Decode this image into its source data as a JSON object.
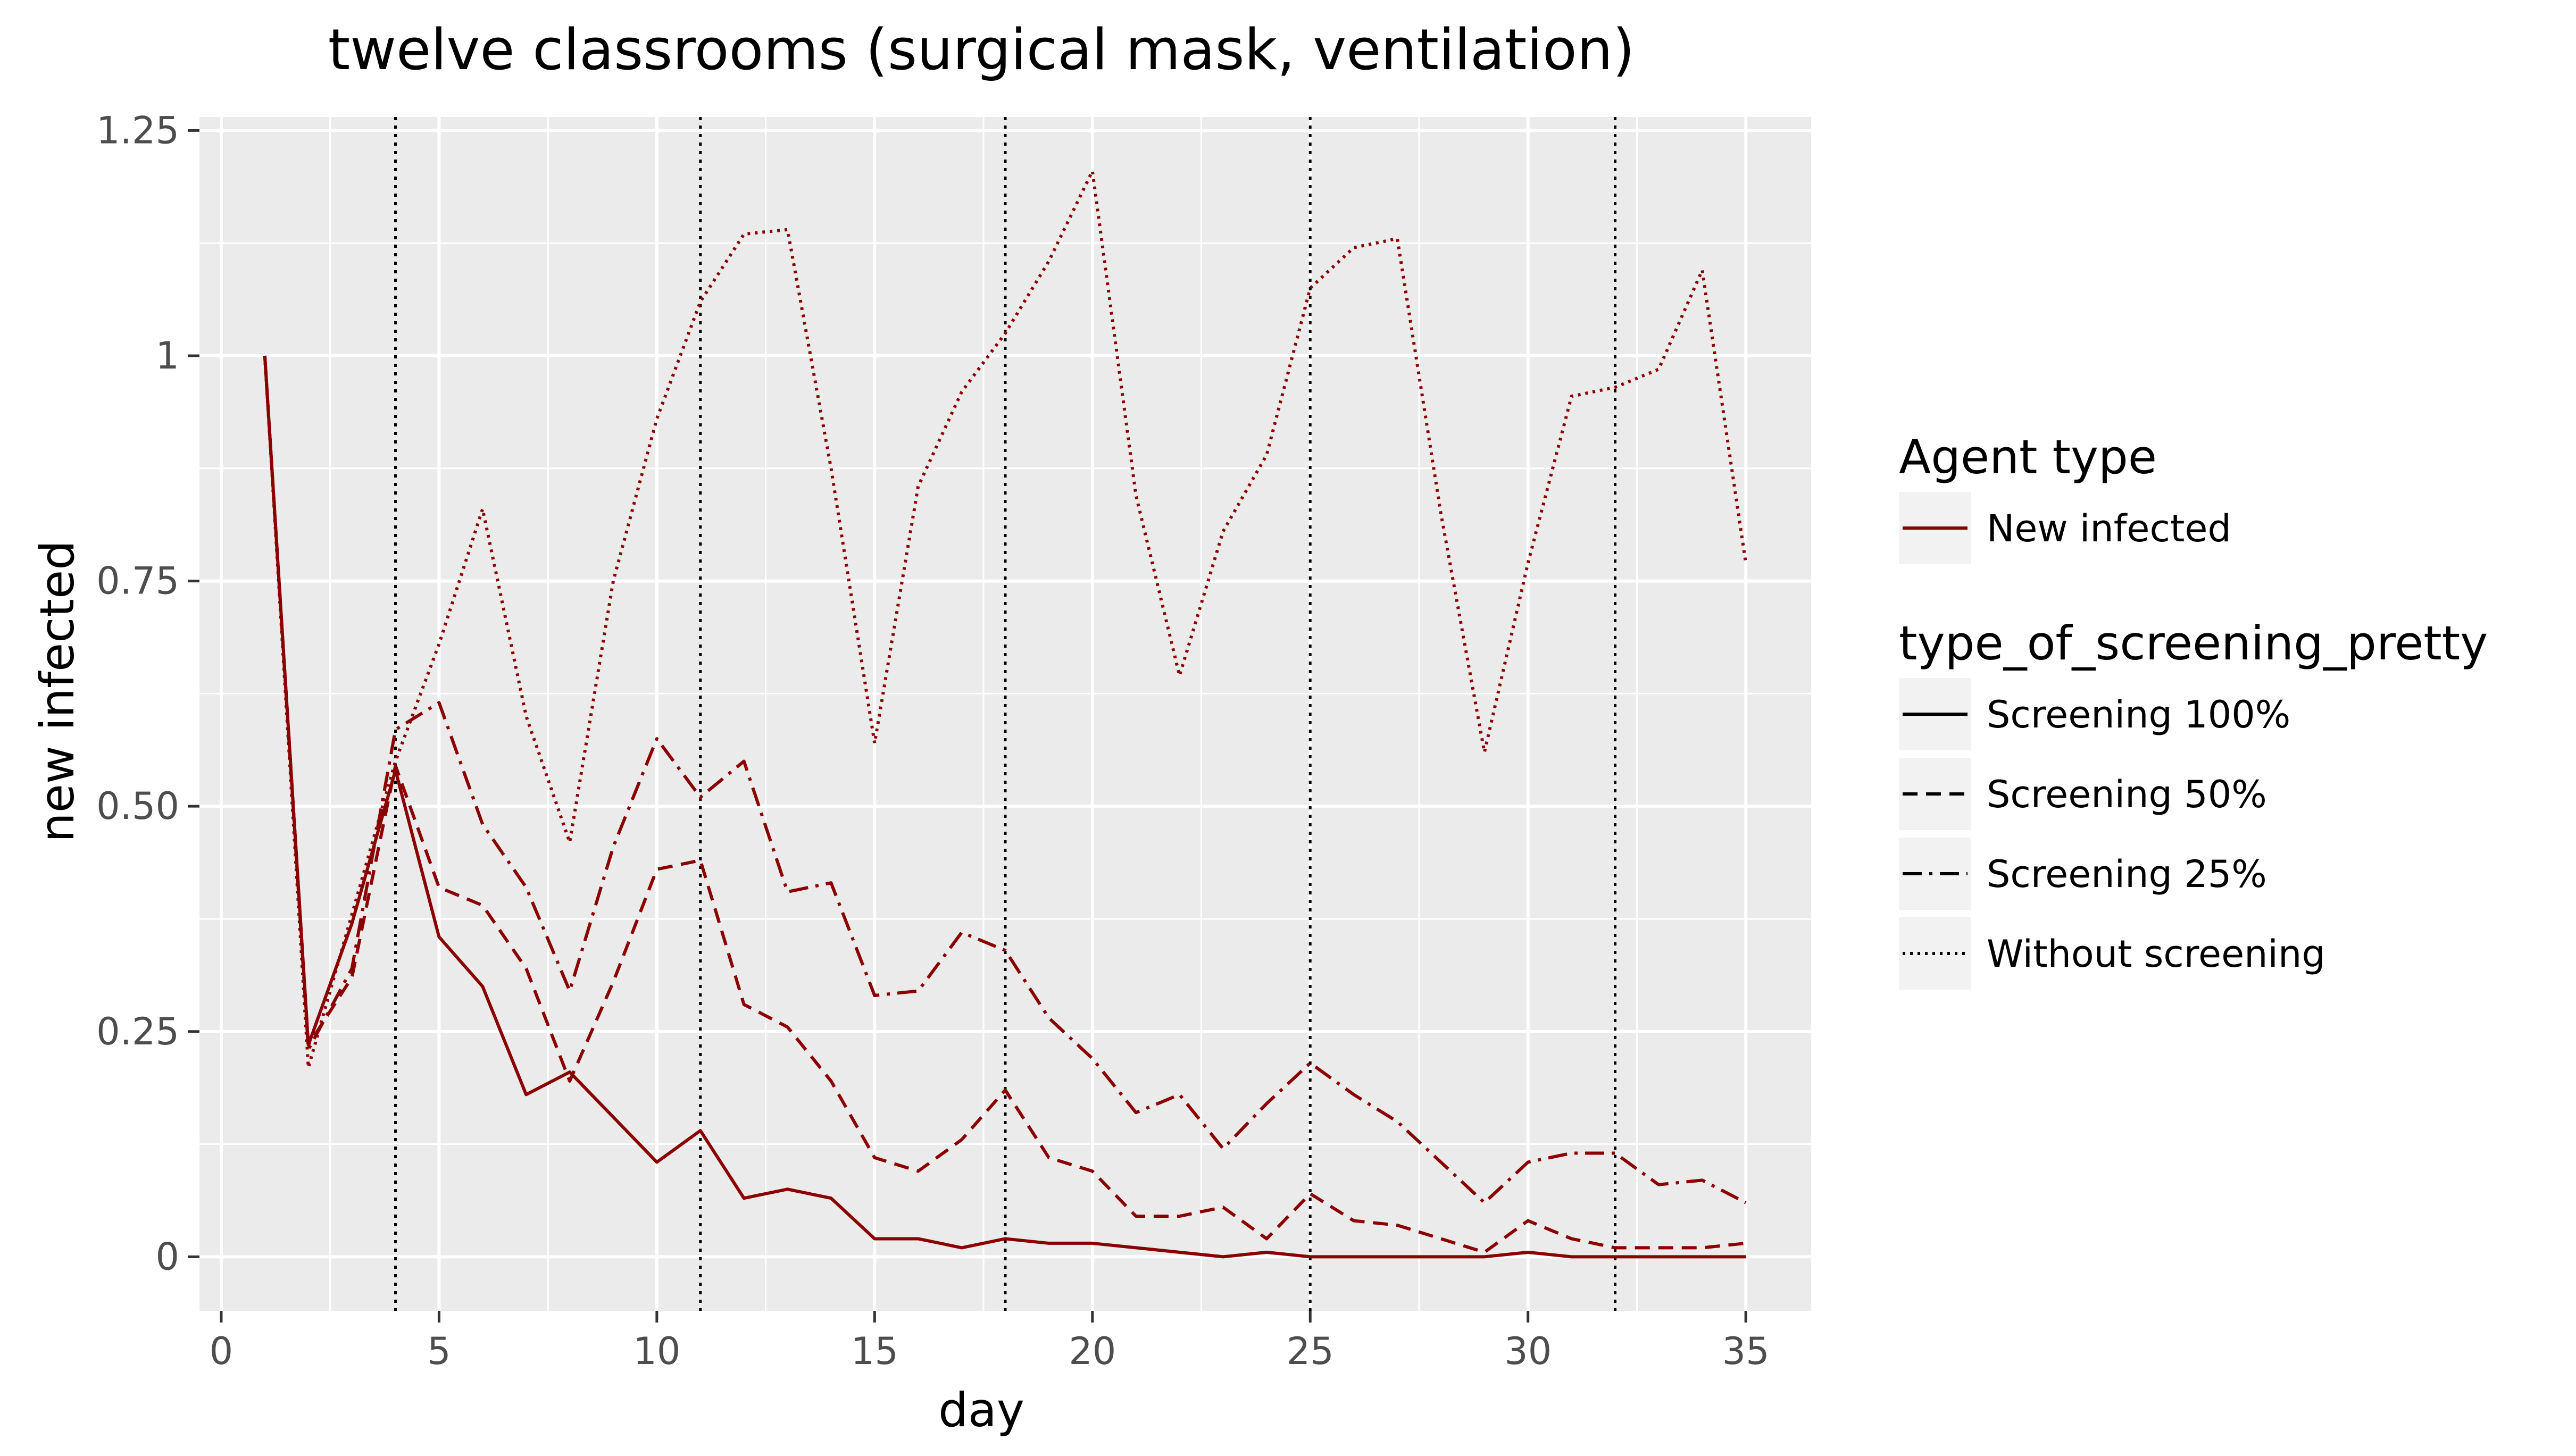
{
  "chart_data": {
    "type": "line",
    "title": "twelve classrooms (surgical mask, ventilation)",
    "xlabel": "day",
    "ylabel": "new infected",
    "xlim": [
      -0.5,
      36.5
    ],
    "ylim": [
      -0.06,
      1.265
    ],
    "x_ticks": [
      0,
      5,
      10,
      15,
      20,
      25,
      30,
      35
    ],
    "x_tick_labels": [
      "0",
      "5",
      "10",
      "15",
      "20",
      "25",
      "30",
      "35"
    ],
    "y_ticks": [
      0,
      0.25,
      0.5,
      0.75,
      1,
      1.25
    ],
    "y_tick_labels": [
      "0",
      "0.25",
      "0.50",
      "0.75",
      "1",
      "1.25"
    ],
    "vlines": [
      4,
      11,
      18,
      25,
      32
    ],
    "grid": true,
    "panel_background": "#ebebeb",
    "line_color": "#8b0000",
    "legend": {
      "placement": "right",
      "color_title": "Agent type",
      "color_entries": [
        {
          "label": "New infected",
          "color": "#8b0000"
        }
      ],
      "linetype_title": "type_of_screening_pretty",
      "linetype_entries": [
        {
          "label": "Screening 100%",
          "dash": "solid"
        },
        {
          "label": "Screening 50%",
          "dash": "dashed"
        },
        {
          "label": "Screening 25%",
          "dash": "dashdot"
        },
        {
          "label": "Without screening",
          "dash": "dotted"
        }
      ]
    },
    "x": [
      1,
      2,
      3,
      4,
      5,
      6,
      7,
      8,
      9,
      10,
      11,
      12,
      13,
      14,
      15,
      16,
      17,
      18,
      19,
      20,
      21,
      22,
      23,
      24,
      25,
      26,
      27,
      28,
      29,
      30,
      31,
      32,
      33,
      34,
      35
    ],
    "series": [
      {
        "name": "Screening 100%",
        "dash": "solid",
        "values": [
          1,
          0.235,
          0.37,
          0.54,
          0.355,
          0.3,
          0.18,
          0.205,
          0.155,
          0.105,
          0.14,
          0.065,
          0.075,
          0.065,
          0.02,
          0.02,
          0.01,
          0.02,
          0.015,
          0.015,
          0.01,
          0.005,
          0.0,
          0.005,
          0.0,
          0.0,
          0.0,
          0.0,
          0.0,
          0.005,
          0.0,
          0.0,
          0.0,
          0.0,
          0.0
        ]
      },
      {
        "name": "Screening 50%",
        "dash": "dashed",
        "values": [
          1,
          0.235,
          0.31,
          0.545,
          0.41,
          0.39,
          0.32,
          0.195,
          0.305,
          0.43,
          0.44,
          0.28,
          0.255,
          0.195,
          0.11,
          0.095,
          0.13,
          0.185,
          0.11,
          0.095,
          0.045,
          0.045,
          0.055,
          0.02,
          0.07,
          0.04,
          0.035,
          0.02,
          0.005,
          0.04,
          0.02,
          0.01,
          0.01,
          0.01,
          0.015
        ]
      },
      {
        "name": "Screening 25%",
        "dash": "dashdot",
        "values": [
          1,
          0.23,
          0.32,
          0.585,
          0.615,
          0.48,
          0.41,
          0.295,
          0.455,
          0.575,
          0.51,
          0.55,
          0.405,
          0.415,
          0.29,
          0.295,
          0.36,
          0.34,
          0.265,
          0.22,
          0.16,
          0.18,
          0.12,
          0.17,
          0.215,
          0.18,
          0.15,
          0.105,
          0.06,
          0.105,
          0.115,
          0.115,
          0.08,
          0.085,
          0.06
        ]
      },
      {
        "name": "Without screening",
        "dash": "dotted",
        "values": [
          1,
          0.21,
          0.38,
          0.55,
          0.68,
          0.83,
          0.6,
          0.46,
          0.75,
          0.93,
          1.06,
          1.135,
          1.14,
          0.875,
          0.57,
          0.855,
          0.96,
          1.025,
          1.105,
          1.205,
          0.845,
          0.645,
          0.805,
          0.89,
          1.075,
          1.12,
          1.13,
          0.825,
          0.56,
          0.77,
          0.955,
          0.965,
          0.985,
          1.095,
          0.77
        ]
      }
    ]
  }
}
